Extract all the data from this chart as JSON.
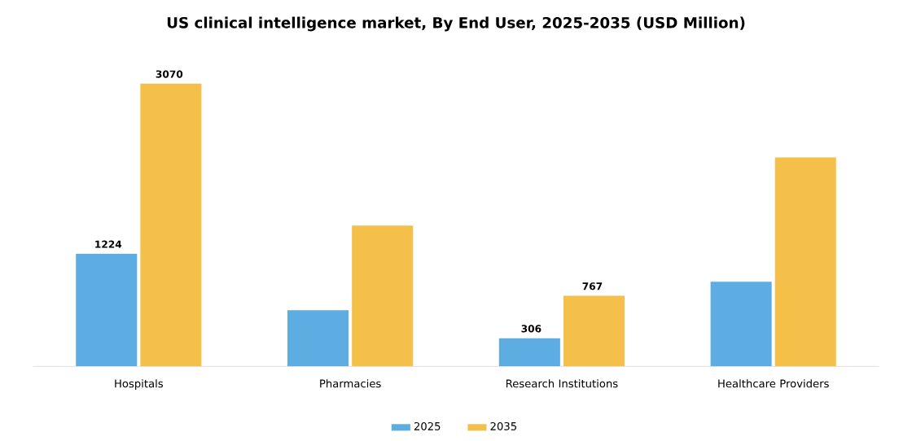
{
  "chart_data": {
    "type": "bar",
    "title": "US clinical intelligence market, By End User, 2025-2035 (USD Million)",
    "categories": [
      "Hospitals",
      "Pharmacies",
      "Research Institutions",
      "Healthcare Providers"
    ],
    "series": [
      {
        "name": "2025",
        "color": "#5dade2",
        "values": [
          1224,
          610,
          306,
          920
        ],
        "value_labels": [
          "1224",
          null,
          "306",
          null
        ]
      },
      {
        "name": "2035",
        "color": "#f5c04a",
        "values": [
          3070,
          1530,
          767,
          2270
        ],
        "value_labels": [
          "3070",
          null,
          "767",
          null
        ]
      }
    ],
    "legend": "bottom"
  }
}
